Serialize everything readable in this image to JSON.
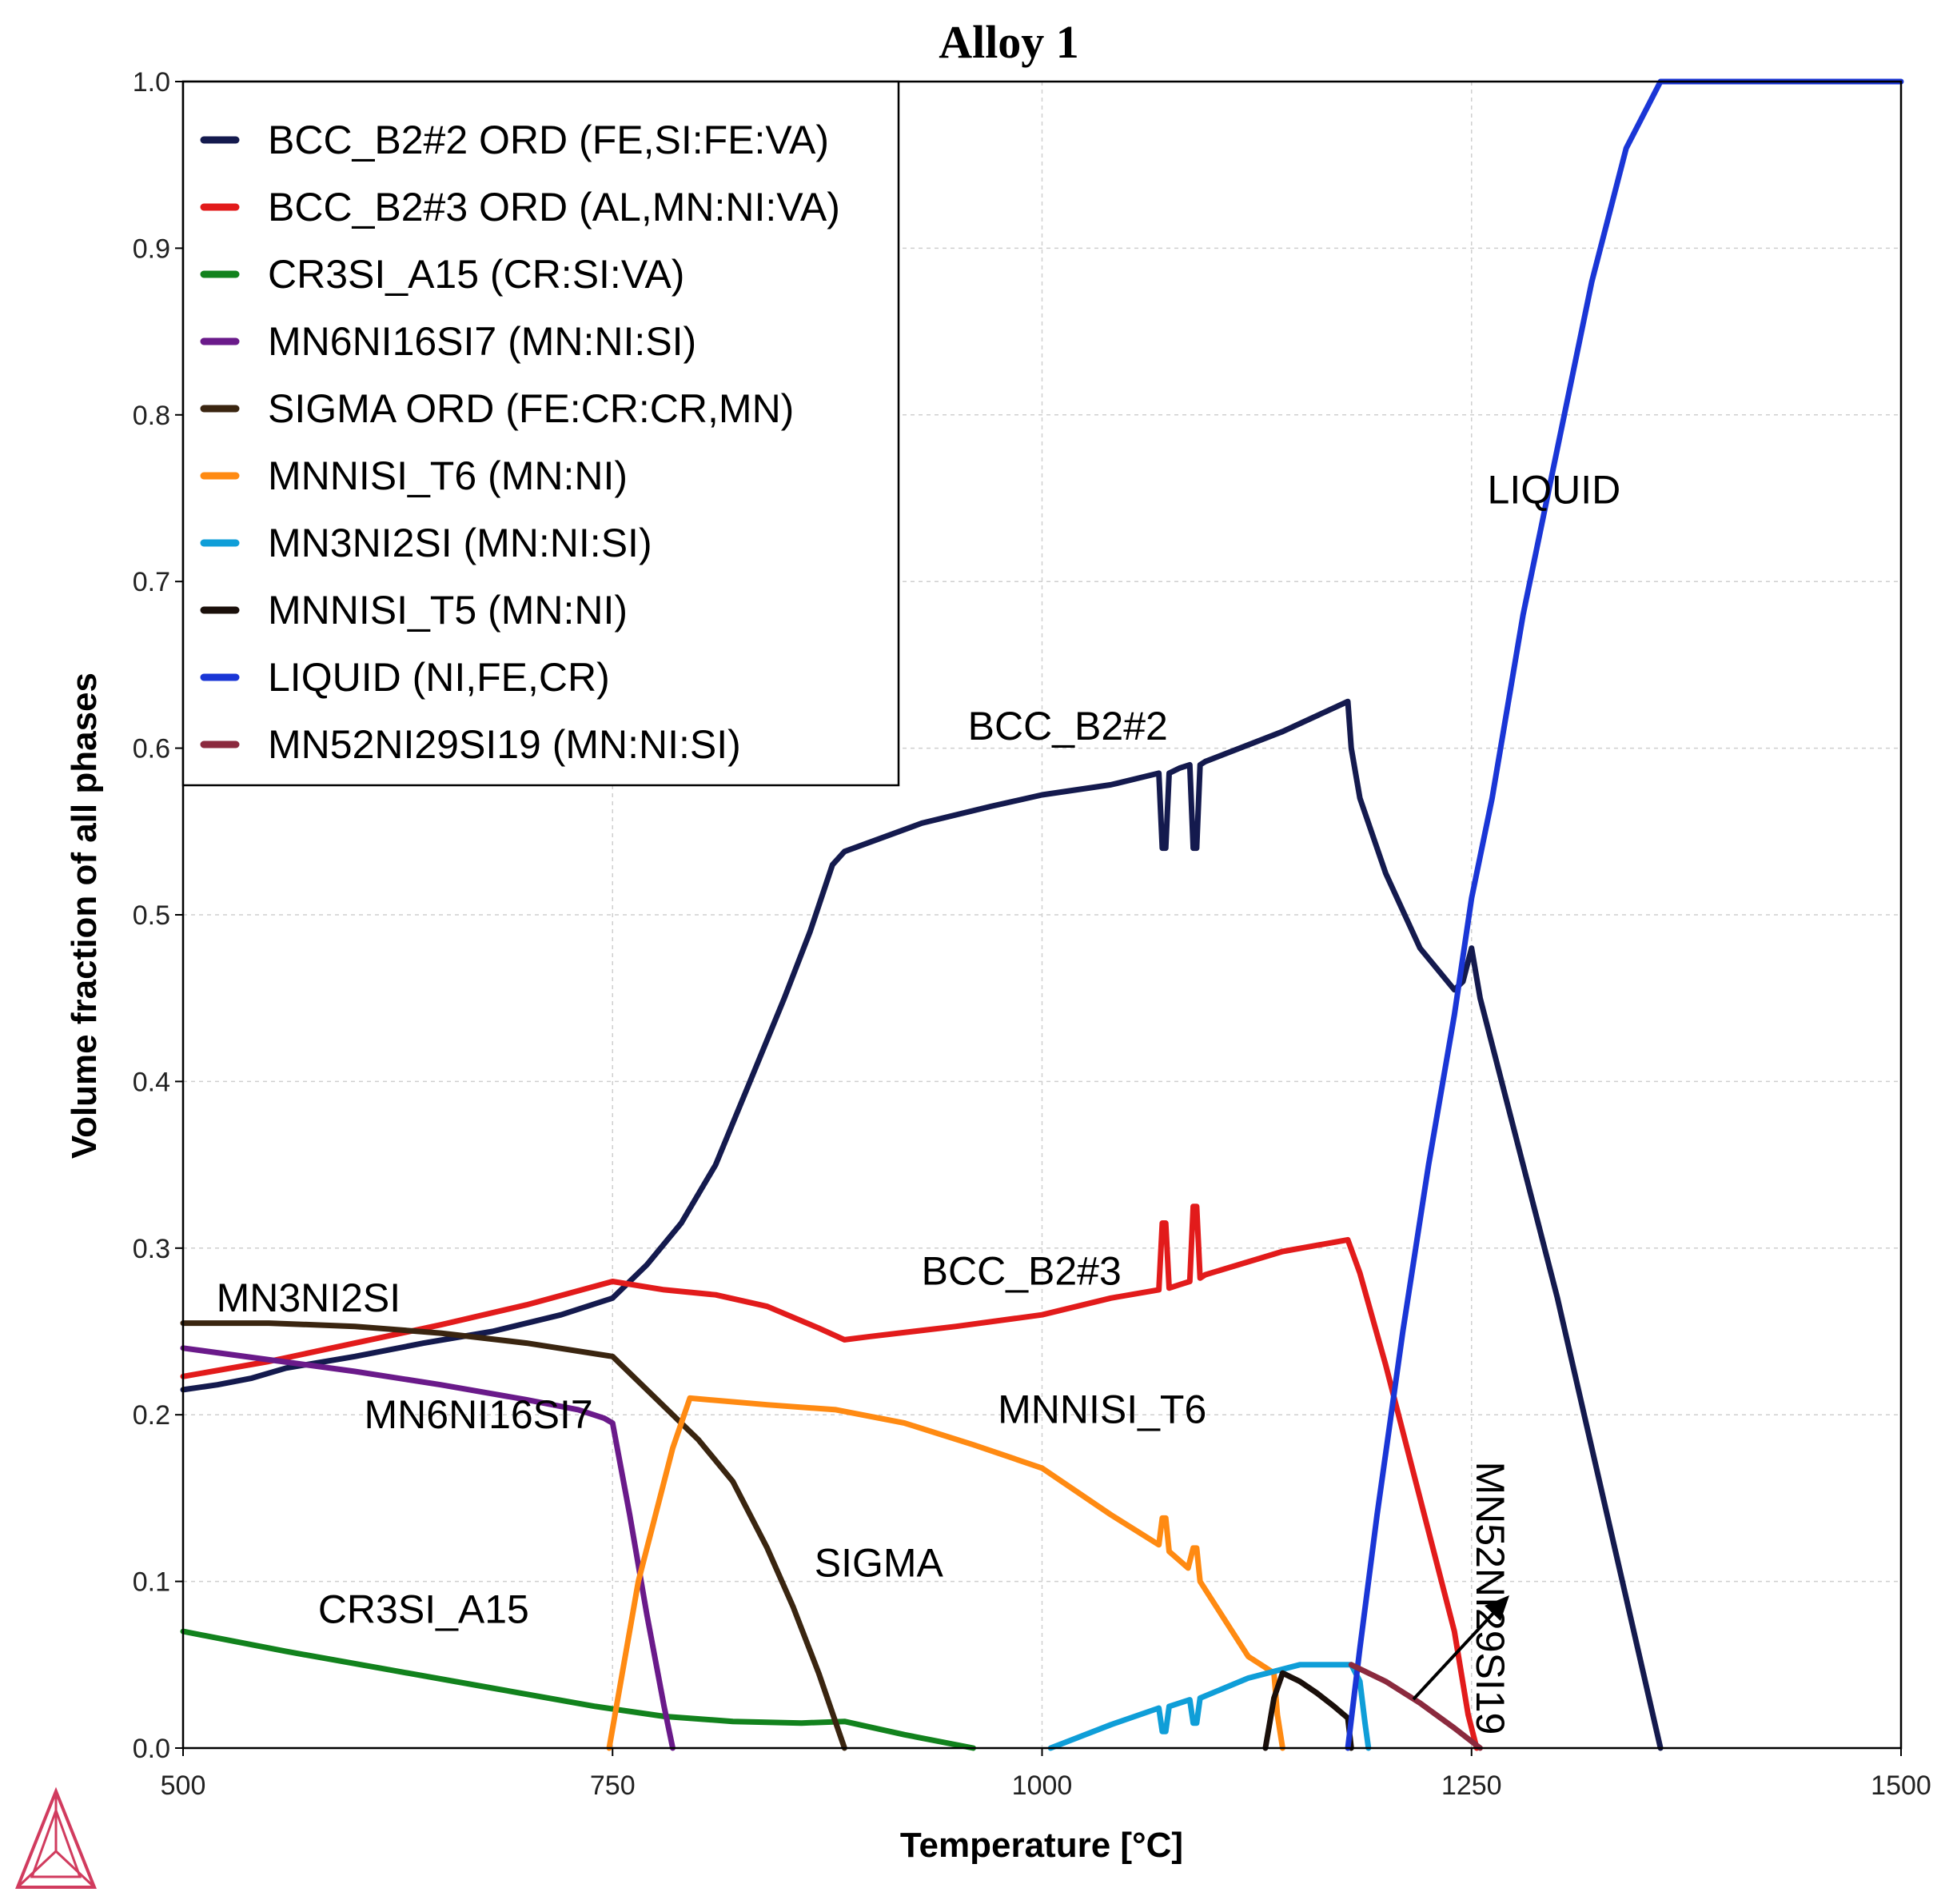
{
  "chart_data": {
    "type": "line",
    "title": "Alloy 1",
    "xlabel": "Temperature [°C]",
    "ylabel": "Volume fraction of all phases",
    "xlim": [
      500,
      1500
    ],
    "ylim": [
      0,
      1.0
    ],
    "xticks": [
      500,
      750,
      1000,
      1250,
      1500
    ],
    "xtick_labels": [
      "500",
      "750",
      "1000",
      "1250",
      "1500"
    ],
    "yticks": [
      0,
      0.1,
      0.2,
      0.3,
      0.4,
      0.5,
      0.6,
      0.7,
      0.8,
      0.9,
      1.0
    ],
    "ytick_labels": [
      "0.0",
      "0.1",
      "0.2",
      "0.3",
      "0.4",
      "0.5",
      "0.6",
      "0.7",
      "0.8",
      "0.9",
      "1.0"
    ],
    "grid": true,
    "legend_position": "top-left",
    "series": [
      {
        "name": "BCC_B2#2 ORD (FE,SI:FE:VA)",
        "color": "#141a4e",
        "x": [
          500,
          520,
          540,
          560,
          600,
          640,
          680,
          720,
          750,
          770,
          790,
          810,
          830,
          850,
          865,
          878,
          885,
          930,
          970,
          1000,
          1040,
          1068,
          1070,
          1072,
          1074,
          1080,
          1086,
          1088,
          1090,
          1092,
          1095,
          1140,
          1178,
          1180,
          1185,
          1200,
          1220,
          1240,
          1245,
          1250,
          1255,
          1300,
          1340,
          1360
        ],
        "y": [
          0.215,
          0.218,
          0.222,
          0.228,
          0.235,
          0.243,
          0.25,
          0.26,
          0.27,
          0.29,
          0.315,
          0.35,
          0.4,
          0.45,
          0.49,
          0.53,
          0.538,
          0.555,
          0.565,
          0.572,
          0.578,
          0.585,
          0.54,
          0.54,
          0.585,
          0.588,
          0.59,
          0.54,
          0.54,
          0.59,
          0.592,
          0.61,
          0.628,
          0.6,
          0.57,
          0.525,
          0.48,
          0.455,
          0.46,
          0.48,
          0.45,
          0.27,
          0.09,
          0.0
        ]
      },
      {
        "name": "BCC_B2#3 ORD (AL,MN:NI:VA)",
        "color": "#e21b1b",
        "x": [
          500,
          550,
          600,
          650,
          700,
          750,
          780,
          810,
          840,
          870,
          885,
          900,
          950,
          1000,
          1040,
          1068,
          1070,
          1072,
          1074,
          1080,
          1086,
          1088,
          1090,
          1092,
          1095,
          1140,
          1178,
          1185,
          1200,
          1215,
          1230,
          1240,
          1248,
          1253
        ],
        "y": [
          0.223,
          0.232,
          0.243,
          0.254,
          0.266,
          0.28,
          0.275,
          0.272,
          0.265,
          0.252,
          0.245,
          0.247,
          0.253,
          0.26,
          0.27,
          0.275,
          0.315,
          0.315,
          0.276,
          0.278,
          0.28,
          0.325,
          0.325,
          0.282,
          0.284,
          0.298,
          0.305,
          0.285,
          0.23,
          0.17,
          0.11,
          0.07,
          0.02,
          0.0
        ]
      },
      {
        "name": "CR3SI_A15 (CR:SI:VA)",
        "color": "#12821d",
        "x": [
          500,
          560,
          620,
          680,
          740,
          780,
          820,
          860,
          885,
          920,
          960
        ],
        "y": [
          0.07,
          0.058,
          0.047,
          0.036,
          0.025,
          0.019,
          0.016,
          0.015,
          0.016,
          0.008,
          0.0
        ]
      },
      {
        "name": "MN6NI16SI7 (MN:NI:SI)",
        "color": "#6a1a8a",
        "x": [
          500,
          550,
          600,
          650,
          700,
          730,
          745,
          750,
          760,
          770,
          780,
          785
        ],
        "y": [
          0.24,
          0.233,
          0.226,
          0.218,
          0.209,
          0.203,
          0.198,
          0.195,
          0.14,
          0.08,
          0.025,
          0.0
        ]
      },
      {
        "name": "SIGMA ORD (FE:CR:CR,MN)",
        "color": "#3a2510",
        "x": [
          500,
          550,
          600,
          650,
          700,
          750,
          775,
          800,
          820,
          840,
          855,
          870,
          880,
          885
        ],
        "y": [
          0.255,
          0.255,
          0.253,
          0.249,
          0.243,
          0.235,
          0.21,
          0.185,
          0.16,
          0.12,
          0.085,
          0.045,
          0.015,
          0.0
        ]
      },
      {
        "name": "MNNISI_T6 (MN:NI)",
        "color": "#ff8a12",
        "x": [
          748,
          765,
          785,
          795,
          840,
          880,
          920,
          960,
          1000,
          1040,
          1068,
          1070,
          1072,
          1074,
          1085,
          1088,
          1090,
          1092,
          1120,
          1135,
          1137,
          1140
        ],
        "y": [
          0.0,
          0.1,
          0.18,
          0.21,
          0.206,
          0.203,
          0.195,
          0.182,
          0.168,
          0.14,
          0.122,
          0.138,
          0.138,
          0.118,
          0.108,
          0.12,
          0.12,
          0.1,
          0.055,
          0.045,
          0.02,
          0.0
        ]
      },
      {
        "name": "MN3NI2SI (MN:NI:SI)",
        "color": "#0f9ed8",
        "x": [
          1005,
          1040,
          1068,
          1070,
          1072,
          1074,
          1086,
          1088,
          1090,
          1092,
          1120,
          1150,
          1180,
          1185,
          1188,
          1190
        ],
        "y": [
          0.0,
          0.014,
          0.024,
          0.01,
          0.01,
          0.025,
          0.029,
          0.015,
          0.015,
          0.03,
          0.042,
          0.05,
          0.05,
          0.04,
          0.015,
          0.0
        ]
      },
      {
        "name": "MNNISI_T5 (MN:NI)",
        "color": "#1a0f0a",
        "x": [
          1130,
          1135,
          1140,
          1150,
          1160,
          1170,
          1178,
          1180
        ],
        "y": [
          0.0,
          0.03,
          0.045,
          0.04,
          0.033,
          0.025,
          0.018,
          0.0
        ]
      },
      {
        "name": "LIQUID (NI,FE,CR)",
        "color": "#1a36d6",
        "x": [
          1178,
          1185,
          1195,
          1210,
          1225,
          1240,
          1250,
          1262,
          1280,
          1300,
          1320,
          1340,
          1360,
          1500
        ],
        "y": [
          0.0,
          0.06,
          0.14,
          0.25,
          0.35,
          0.44,
          0.51,
          0.57,
          0.68,
          0.78,
          0.88,
          0.96,
          1.0,
          1.0
        ]
      },
      {
        "name": "MN52NI29SI19 (MN:NI:SI)",
        "color": "#8b2a3e",
        "x": [
          1180,
          1200,
          1220,
          1240,
          1255
        ],
        "y": [
          0.05,
          0.04,
          0.027,
          0.012,
          0.0
        ]
      }
    ],
    "annotations": [
      {
        "text": "BCC_B2#2",
        "x": 1015,
        "y": 0.605
      },
      {
        "text": "BCC_B2#3",
        "x": 988,
        "y": 0.278
      },
      {
        "text": "MN3NI2SI",
        "x": 573,
        "y": 0.262
      },
      {
        "text": "MN6NI16SI7",
        "x": 672,
        "y": 0.192
      },
      {
        "text": "MNNISI_T6",
        "x": 1035,
        "y": 0.195
      },
      {
        "text": "SIGMA",
        "x": 905,
        "y": 0.103
      },
      {
        "text": "CR3SI_A15",
        "x": 640,
        "y": 0.075
      },
      {
        "text": "LIQUID",
        "x": 1298,
        "y": 0.747
      },
      {
        "text": "MN52NI29SI19",
        "x": 1253,
        "y": 0.09,
        "rotated": true
      }
    ]
  },
  "logo": {
    "name": "thermo-calc-logo",
    "color": "#d13b5e"
  }
}
